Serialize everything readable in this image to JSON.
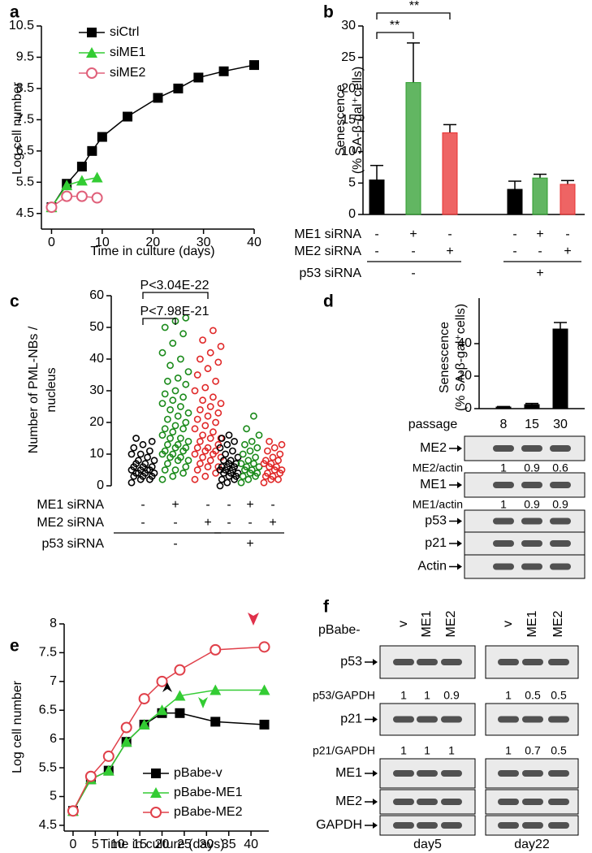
{
  "chart_data": [
    {
      "type": "line",
      "label": "a",
      "xlabel": "Time in culture (days)",
      "ylabel": [
        "Log cell number"
      ],
      "xlim": [
        -2,
        40
      ],
      "xticks": [
        0,
        10,
        20,
        30,
        40
      ],
      "ylim": [
        4,
        10.5
      ],
      "yticks": [
        4.5,
        5.5,
        6.5,
        7.5,
        8.5,
        9.5,
        10.5
      ],
      "series": [
        {
          "name": "siCtrl",
          "color": "#000000",
          "marker": "square",
          "x": [
            0,
            3,
            6,
            8,
            10,
            15,
            21,
            25,
            29,
            34,
            40
          ],
          "values": [
            4.7,
            5.45,
            6.0,
            6.5,
            6.95,
            7.6,
            8.2,
            8.5,
            8.85,
            9.05,
            9.25
          ]
        },
        {
          "name": "siME1",
          "color": "#33cc33",
          "marker": "triangle",
          "x": [
            0,
            3,
            6,
            9
          ],
          "values": [
            4.7,
            5.4,
            5.55,
            5.65
          ]
        },
        {
          "name": "siME2",
          "color": "#e0607a",
          "marker": "circle",
          "x": [
            0,
            3,
            6,
            9
          ],
          "values": [
            4.7,
            5.05,
            5.05,
            5.0
          ]
        }
      ]
    },
    {
      "type": "bar",
      "label": "b",
      "ylabel": [
        "Senescence",
        "(% SA-β-gal⁺cells)"
      ],
      "ylim": [
        0,
        30
      ],
      "yticks": [
        0,
        5,
        10,
        15,
        20,
        25,
        30
      ],
      "values": [
        5.5,
        21,
        13,
        4,
        5.8,
        4.8
      ],
      "errors": [
        2.3,
        6.3,
        1.3,
        1.3,
        0.6,
        0.6
      ],
      "colors": [
        "#000000",
        "#2e9e2e",
        "#e83030",
        "#000000",
        "#2e9e2e",
        "#e83030"
      ],
      "annotations": [
        "**",
        "**"
      ],
      "conditions": [
        {
          "label": "ME1 siRNA",
          "marks": [
            "-",
            "+",
            "-",
            "-",
            "+",
            "-"
          ]
        },
        {
          "label": "ME2 siRNA",
          "marks": [
            "-",
            "-",
            "+",
            "-",
            "-",
            "+"
          ]
        },
        {
          "label": "p53 siRNA",
          "marks": [
            "-",
            "+"
          ]
        }
      ]
    },
    {
      "type": "strip",
      "label": "c",
      "ylabel": [
        "Number of PML-NBs /",
        "nucleus"
      ],
      "ylim": [
        0,
        60
      ],
      "yticks": [
        0,
        10,
        20,
        30,
        40,
        50,
        60
      ],
      "annotations": [
        "P<3.04E-22",
        "P<7.98E-21"
      ],
      "groups": [
        {
          "color": "#000000",
          "values": [
            1,
            2,
            2,
            3,
            3,
            3,
            4,
            4,
            4,
            4,
            5,
            5,
            5,
            5,
            6,
            6,
            6,
            7,
            7,
            8,
            8,
            9,
            10,
            10,
            11,
            12,
            13,
            14,
            15
          ]
        },
        {
          "color": "#1a8a1a",
          "values": [
            2,
            3,
            4,
            5,
            5,
            6,
            7,
            8,
            8,
            9,
            9,
            10,
            10,
            11,
            11,
            12,
            12,
            13,
            13,
            14,
            15,
            15,
            16,
            17,
            18,
            18,
            19,
            20,
            21,
            22,
            23,
            24,
            25,
            26,
            27,
            28,
            29,
            30,
            32,
            33,
            34,
            36,
            38,
            40,
            42,
            45,
            48,
            50,
            52,
            53
          ]
        },
        {
          "color": "#e02828",
          "values": [
            2,
            3,
            4,
            5,
            6,
            6,
            7,
            8,
            9,
            9,
            10,
            10,
            11,
            11,
            12,
            12,
            13,
            14,
            15,
            15,
            16,
            17,
            18,
            19,
            20,
            21,
            22,
            23,
            24,
            25,
            26,
            27,
            28,
            30,
            31,
            33,
            35,
            37,
            39,
            40,
            42,
            44,
            46,
            49
          ]
        },
        {
          "color": "#000000",
          "values": [
            0,
            1,
            2,
            2,
            3,
            3,
            4,
            4,
            4,
            5,
            5,
            5,
            6,
            6,
            6,
            7,
            7,
            8,
            8,
            9,
            10,
            11,
            12,
            13,
            14,
            15,
            16
          ]
        },
        {
          "color": "#1a8a1a",
          "values": [
            1,
            2,
            3,
            3,
            4,
            4,
            5,
            5,
            6,
            6,
            7,
            7,
            8,
            9,
            10,
            11,
            12,
            13,
            14,
            16,
            18,
            22
          ]
        },
        {
          "color": "#e02828",
          "values": [
            1,
            2,
            2,
            3,
            3,
            4,
            4,
            5,
            5,
            6,
            6,
            7,
            7,
            8,
            8,
            9,
            10,
            11,
            12,
            13,
            14
          ]
        }
      ],
      "conditions": [
        {
          "label": "ME1 siRNA",
          "marks": [
            "-",
            "+",
            "-",
            "-",
            "+",
            "-"
          ]
        },
        {
          "label": "ME2 siRNA",
          "marks": [
            "-",
            "-",
            "+",
            "-",
            "-",
            "+"
          ]
        },
        {
          "label": "p53 siRNA",
          "marks": [
            "-",
            "+"
          ]
        }
      ]
    },
    {
      "type": "bar",
      "label": "d",
      "ylabel": [
        "Senescence",
        "(% SA-β-gal⁺cells)"
      ],
      "xlabel": "passage",
      "categories": [
        "8",
        "15",
        "30"
      ],
      "values": [
        1,
        2.5,
        49
      ],
      "errors": [
        0.3,
        0.7,
        4
      ],
      "color": "#000000",
      "ylim": [
        0,
        68
      ],
      "yticks": [
        0,
        20,
        40
      ]
    },
    {
      "type": "line",
      "label": "e",
      "xlabel": "Time in culture (days)",
      "ylabel": [
        "Log cell number"
      ],
      "xlim": [
        -2,
        44
      ],
      "xticks": [
        0,
        5,
        10,
        15,
        20,
        25,
        30,
        35,
        40
      ],
      "ylim": [
        4.4,
        8
      ],
      "yticks": [
        4.5,
        5,
        5.5,
        6,
        6.5,
        7,
        7.5,
        8
      ],
      "series": [
        {
          "name": "pBabe-v",
          "color": "#000000",
          "marker": "square",
          "x": [
            0,
            4,
            8,
            12,
            16,
            20,
            24,
            32,
            43
          ],
          "values": [
            4.75,
            5.3,
            5.45,
            5.95,
            6.25,
            6.45,
            6.45,
            6.3,
            6.25
          ]
        },
        {
          "name": "pBabe-ME1",
          "color": "#33cc33",
          "marker": "triangle",
          "x": [
            0,
            4,
            8,
            12,
            16,
            20,
            24,
            32,
            43
          ],
          "values": [
            4.75,
            5.3,
            5.45,
            5.95,
            6.25,
            6.5,
            6.75,
            6.85,
            6.85
          ]
        },
        {
          "name": "pBabe-ME2",
          "color": "#e0404a",
          "marker": "circle",
          "x": [
            0,
            4,
            8,
            12,
            16,
            20,
            24,
            32,
            43
          ],
          "values": [
            4.75,
            5.35,
            5.7,
            6.2,
            6.7,
            7.0,
            7.2,
            7.55,
            7.6
          ]
        }
      ]
    }
  ],
  "blots": {
    "d": {
      "rows": [
        {
          "name": "ME2"
        },
        {
          "name": "ME2/actin",
          "values": [
            1,
            0.9,
            0.6
          ]
        },
        {
          "name": "ME1"
        },
        {
          "name": "ME1/actin",
          "values": [
            1,
            0.9,
            0.9
          ]
        },
        {
          "name": "p53"
        },
        {
          "name": "p21"
        },
        {
          "name": "Actin"
        }
      ]
    },
    "f": {
      "label": "f",
      "prefix": "pBabe-",
      "lanes": [
        "v",
        "ME1",
        "ME2"
      ],
      "groups": [
        "day5",
        "day22"
      ],
      "rows": [
        {
          "name": "p53"
        },
        {
          "name": "p53/GAPDH",
          "values": [
            [
              1,
              1,
              0.9
            ],
            [
              1,
              0.5,
              0.5
            ]
          ]
        },
        {
          "name": "p21"
        },
        {
          "name": "p21/GAPDH",
          "values": [
            [
              1,
              1,
              1
            ],
            [
              1,
              0.7,
              0.5
            ]
          ]
        },
        {
          "name": "ME1"
        },
        {
          "name": "ME2"
        },
        {
          "name": "GAPDH"
        }
      ]
    }
  }
}
